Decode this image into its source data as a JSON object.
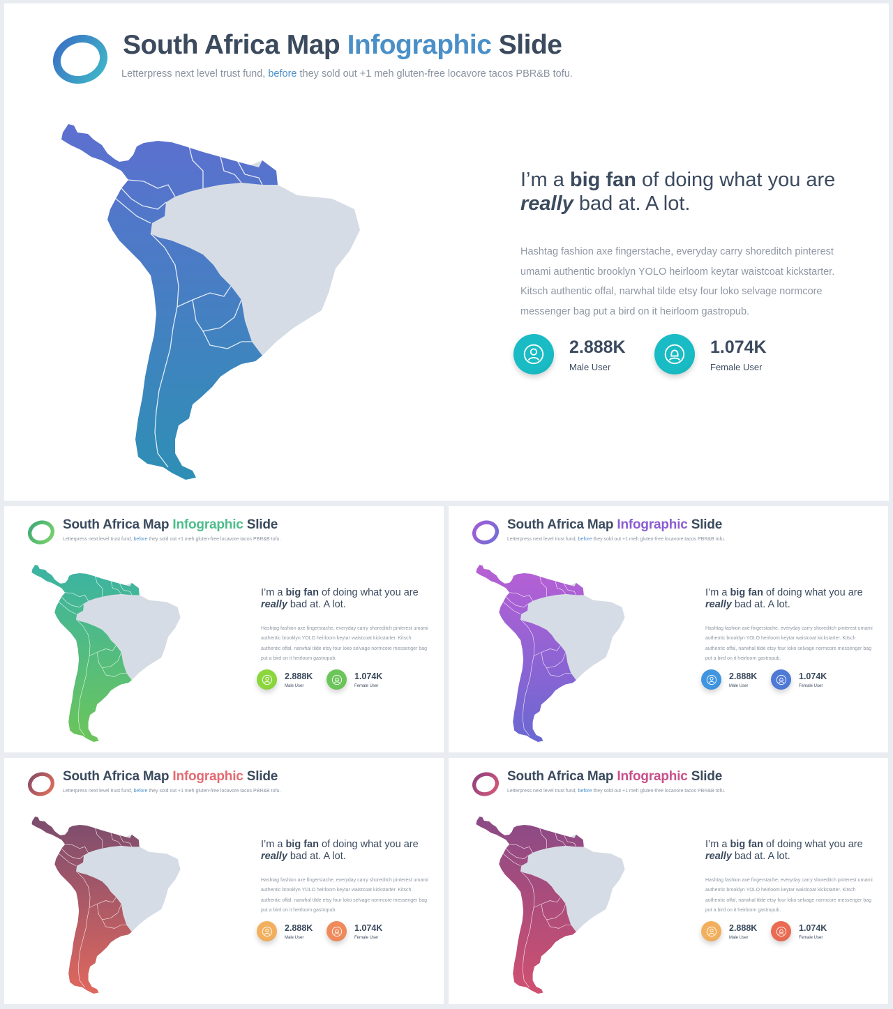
{
  "title": {
    "part1": "South Africa Map ",
    "accent": "Infographic",
    "part2": " Slide"
  },
  "subtitle": {
    "before": "Letterpress next level trust fund, ",
    "highlight": "before",
    "after": " they sold out +1 meh gluten-free locavore tacos PBR&B tofu."
  },
  "quote": {
    "pre": "I’m a ",
    "bold": "big fan",
    "mid": " of doing what you are",
    "italic": "really",
    "post": " bad at. A lot."
  },
  "paragraph": "Hashtag fashion axe fingerstache, everyday carry shoreditch pinterest umami authentic brooklyn YOLO heirloom keytar waistcoat kickstarter. Kitsch authentic offal, narwhal tilde etsy four loko selvage normcore messenger bag put a bird on it heirloom gastropub.",
  "stats": [
    {
      "value": "2.888K",
      "label": "Male User",
      "icon": "male-user-icon"
    },
    {
      "value": "1.074K",
      "label": "Female User",
      "icon": "female-user-icon"
    }
  ],
  "themes": [
    {
      "name": "blue",
      "accent": "#4a90c8",
      "logo_a": "#3a6fc4",
      "logo_b": "#3fb8c8",
      "map_top": "#5d6fd0",
      "map_bottom": "#2e8fb5",
      "stat1": "#19bcc4",
      "stat2": "#19bcc4"
    },
    {
      "name": "green",
      "accent": "#4dbd8a",
      "logo_a": "#3aa977",
      "logo_b": "#7ed36a",
      "map_top": "#3bb3a4",
      "map_bottom": "#6cc55a",
      "stat1": "#8bd63d",
      "stat2": "#6cc55a"
    },
    {
      "name": "purple",
      "accent": "#8a5ed1",
      "logo_a": "#a35cd4",
      "logo_b": "#6f6fd6",
      "map_top": "#b85fd4",
      "map_bottom": "#6a68d2",
      "stat1": "#3f95e0",
      "stat2": "#4f79d6"
    },
    {
      "name": "coral",
      "accent": "#e36a72",
      "logo_a": "#8a4a66",
      "logo_b": "#e0705a",
      "map_top": "#7a4c6e",
      "map_bottom": "#e0685e",
      "stat1": "#f2b05e",
      "stat2": "#ef8a5a"
    },
    {
      "name": "magenta",
      "accent": "#c8508a",
      "logo_a": "#8e3f80",
      "logo_b": "#d65a78",
      "map_top": "#8a4a86",
      "map_bottom": "#d05070",
      "stat1": "#f2b05e",
      "stat2": "#ea6a52"
    }
  ],
  "map_neighbor_color": "#d6dce5",
  "text_color": "#3b4a5e"
}
